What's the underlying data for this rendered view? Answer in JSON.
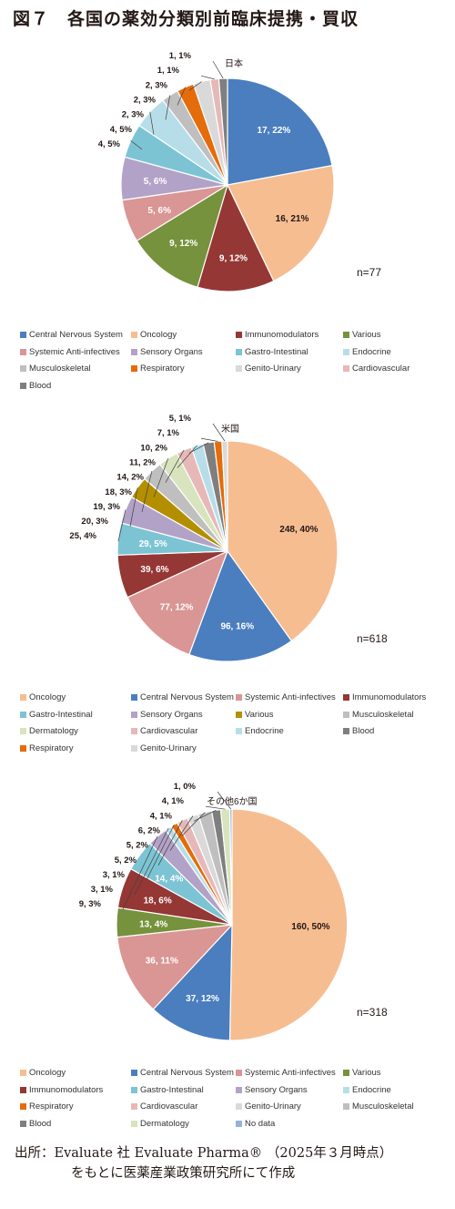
{
  "title": "図７　各国の薬効分類別前臨床提携・買収",
  "colors": {
    "Central Nervous System": "#4a7ebf",
    "Oncology": "#f6bd91",
    "Immunomodulators": "#953735",
    "Various": "#76923c",
    "Systemic Anti-infectives": "#d99694",
    "Sensory Organs": "#b3a2c7",
    "Gastro-Intestinal": "#7cc4d4",
    "Endocrine": "#b7dee8",
    "Musculoskeletal": "#bfbfbf",
    "Respiratory": "#e46c0a",
    "Genito-Urinary": "#d9d9d9",
    "Cardiovascular": "#e6b9b8",
    "Blood": "#7f7f7f",
    "Dermatology": "#d7e4bd",
    "Various2": "#b38f00",
    "No data": "#95b3d7"
  },
  "chart_data": [
    {
      "type": "pie",
      "country": "日本",
      "n_label": "n=77",
      "slices": [
        {
          "name": "Central Nervous System",
          "value": 17,
          "label": "17, 22%"
        },
        {
          "name": "Oncology",
          "value": 16,
          "label": "16, 21%"
        },
        {
          "name": "Immunomodulators",
          "value": 9,
          "label": "9, 12%"
        },
        {
          "name": "Various",
          "value": 9,
          "label": "9, 12%"
        },
        {
          "name": "Systemic Anti-infectives",
          "value": 5,
          "label": "5, 6%"
        },
        {
          "name": "Sensory Organs",
          "value": 5,
          "label": "5, 6%"
        },
        {
          "name": "Gastro-Intestinal",
          "value": 4,
          "label": "4, 5%"
        },
        {
          "name": "Endocrine",
          "value": 4,
          "label": "4, 5%"
        },
        {
          "name": "Musculoskeletal",
          "value": 2,
          "label": "2, 3%"
        },
        {
          "name": "Respiratory",
          "value": 2,
          "label": "2, 3%"
        },
        {
          "name": "Genito-Urinary",
          "value": 2,
          "label": "2, 3%"
        },
        {
          "name": "Cardiovascular",
          "value": 1,
          "label": "1, 1%"
        },
        {
          "name": "Blood",
          "value": 1,
          "label": "1, 1%"
        }
      ],
      "legend": [
        "Central Nervous System",
        "Oncology",
        "Immunomodulators",
        "Various",
        "Systemic Anti-infectives",
        "Sensory Organs",
        "Gastro-Intestinal",
        "Endocrine",
        "Musculoskeletal",
        "Respiratory",
        "Genito-Urinary",
        "Cardiovascular",
        "Blood"
      ]
    },
    {
      "type": "pie",
      "country": "米国",
      "n_label": "n=618",
      "slices": [
        {
          "name": "Oncology",
          "value": 248,
          "label": "248, 40%"
        },
        {
          "name": "Central Nervous System",
          "value": 96,
          "label": "96, 16%"
        },
        {
          "name": "Systemic Anti-infectives",
          "value": 77,
          "label": "77, 12%"
        },
        {
          "name": "Immunomodulators",
          "value": 39,
          "label": "39, 6%"
        },
        {
          "name": "Gastro-Intestinal",
          "value": 29,
          "label": "29, 5%"
        },
        {
          "name": "Sensory Organs",
          "value": 25,
          "label": "25, 4%"
        },
        {
          "name": "Various",
          "value": 20,
          "label": "20, 3%"
        },
        {
          "name": "Musculoskeletal",
          "value": 19,
          "label": "19, 3%"
        },
        {
          "name": "Dermatology",
          "value": 18,
          "label": "18, 3%"
        },
        {
          "name": "Cardiovascular",
          "value": 14,
          "label": "14, 2%"
        },
        {
          "name": "Endocrine",
          "value": 11,
          "label": "11, 2%"
        },
        {
          "name": "Blood",
          "value": 10,
          "label": "10, 2%"
        },
        {
          "name": "Respiratory",
          "value": 7,
          "label": "7, 1%"
        },
        {
          "name": "Genito-Urinary",
          "value": 5,
          "label": "5, 1%"
        }
      ],
      "legend": [
        "Oncology",
        "Central Nervous System",
        "Systemic Anti-infectives",
        "Immunomodulators",
        "Gastro-Intestinal",
        "Sensory Organs",
        "Various",
        "Musculoskeletal",
        "Dermatology",
        "Cardiovascular",
        "Endocrine",
        "Blood",
        "Respiratory",
        "Genito-Urinary"
      ]
    },
    {
      "type": "pie",
      "country": "その他6か国",
      "n_label": "n=318",
      "slices": [
        {
          "name": "Oncology",
          "value": 160,
          "label": "160, 50%"
        },
        {
          "name": "Central Nervous System",
          "value": 37,
          "label": "37, 12%"
        },
        {
          "name": "Systemic Anti-infectives",
          "value": 36,
          "label": "36, 11%"
        },
        {
          "name": "Various",
          "value": 13,
          "label": "13, 4%"
        },
        {
          "name": "Immunomodulators",
          "value": 18,
          "label": "18, 6%"
        },
        {
          "name": "Gastro-Intestinal",
          "value": 14,
          "label": "14, 4%"
        },
        {
          "name": "Sensory Organs",
          "value": 9,
          "label": "9, 3%"
        },
        {
          "name": "Endocrine",
          "value": 3,
          "label": "3, 1%"
        },
        {
          "name": "Respiratory",
          "value": 3,
          "label": "3, 1%"
        },
        {
          "name": "Cardiovascular",
          "value": 5,
          "label": "5, 2%"
        },
        {
          "name": "Genito-Urinary",
          "value": 5,
          "label": "5, 2%"
        },
        {
          "name": "Musculoskeletal",
          "value": 6,
          "label": "6, 2%"
        },
        {
          "name": "Blood",
          "value": 4,
          "label": "4, 1%"
        },
        {
          "name": "Dermatology",
          "value": 4,
          "label": "4, 1%"
        },
        {
          "name": "No data",
          "value": 1,
          "label": "1, 0%"
        }
      ],
      "legend": [
        "Oncology",
        "Central Nervous System",
        "Systemic Anti-infectives",
        "Various",
        "Immunomodulators",
        "Gastro-Intestinal",
        "Sensory Organs",
        "Endocrine",
        "Respiratory",
        "Cardiovascular",
        "Genito-Urinary",
        "Musculoskeletal",
        "Blood",
        "Dermatology",
        "No data"
      ]
    }
  ],
  "source": {
    "line1": "出所：Evaluate 社 Evaluate Pharma® （2025年３月時点）",
    "line2": "をもとに医薬産業政策研究所にて作成"
  }
}
